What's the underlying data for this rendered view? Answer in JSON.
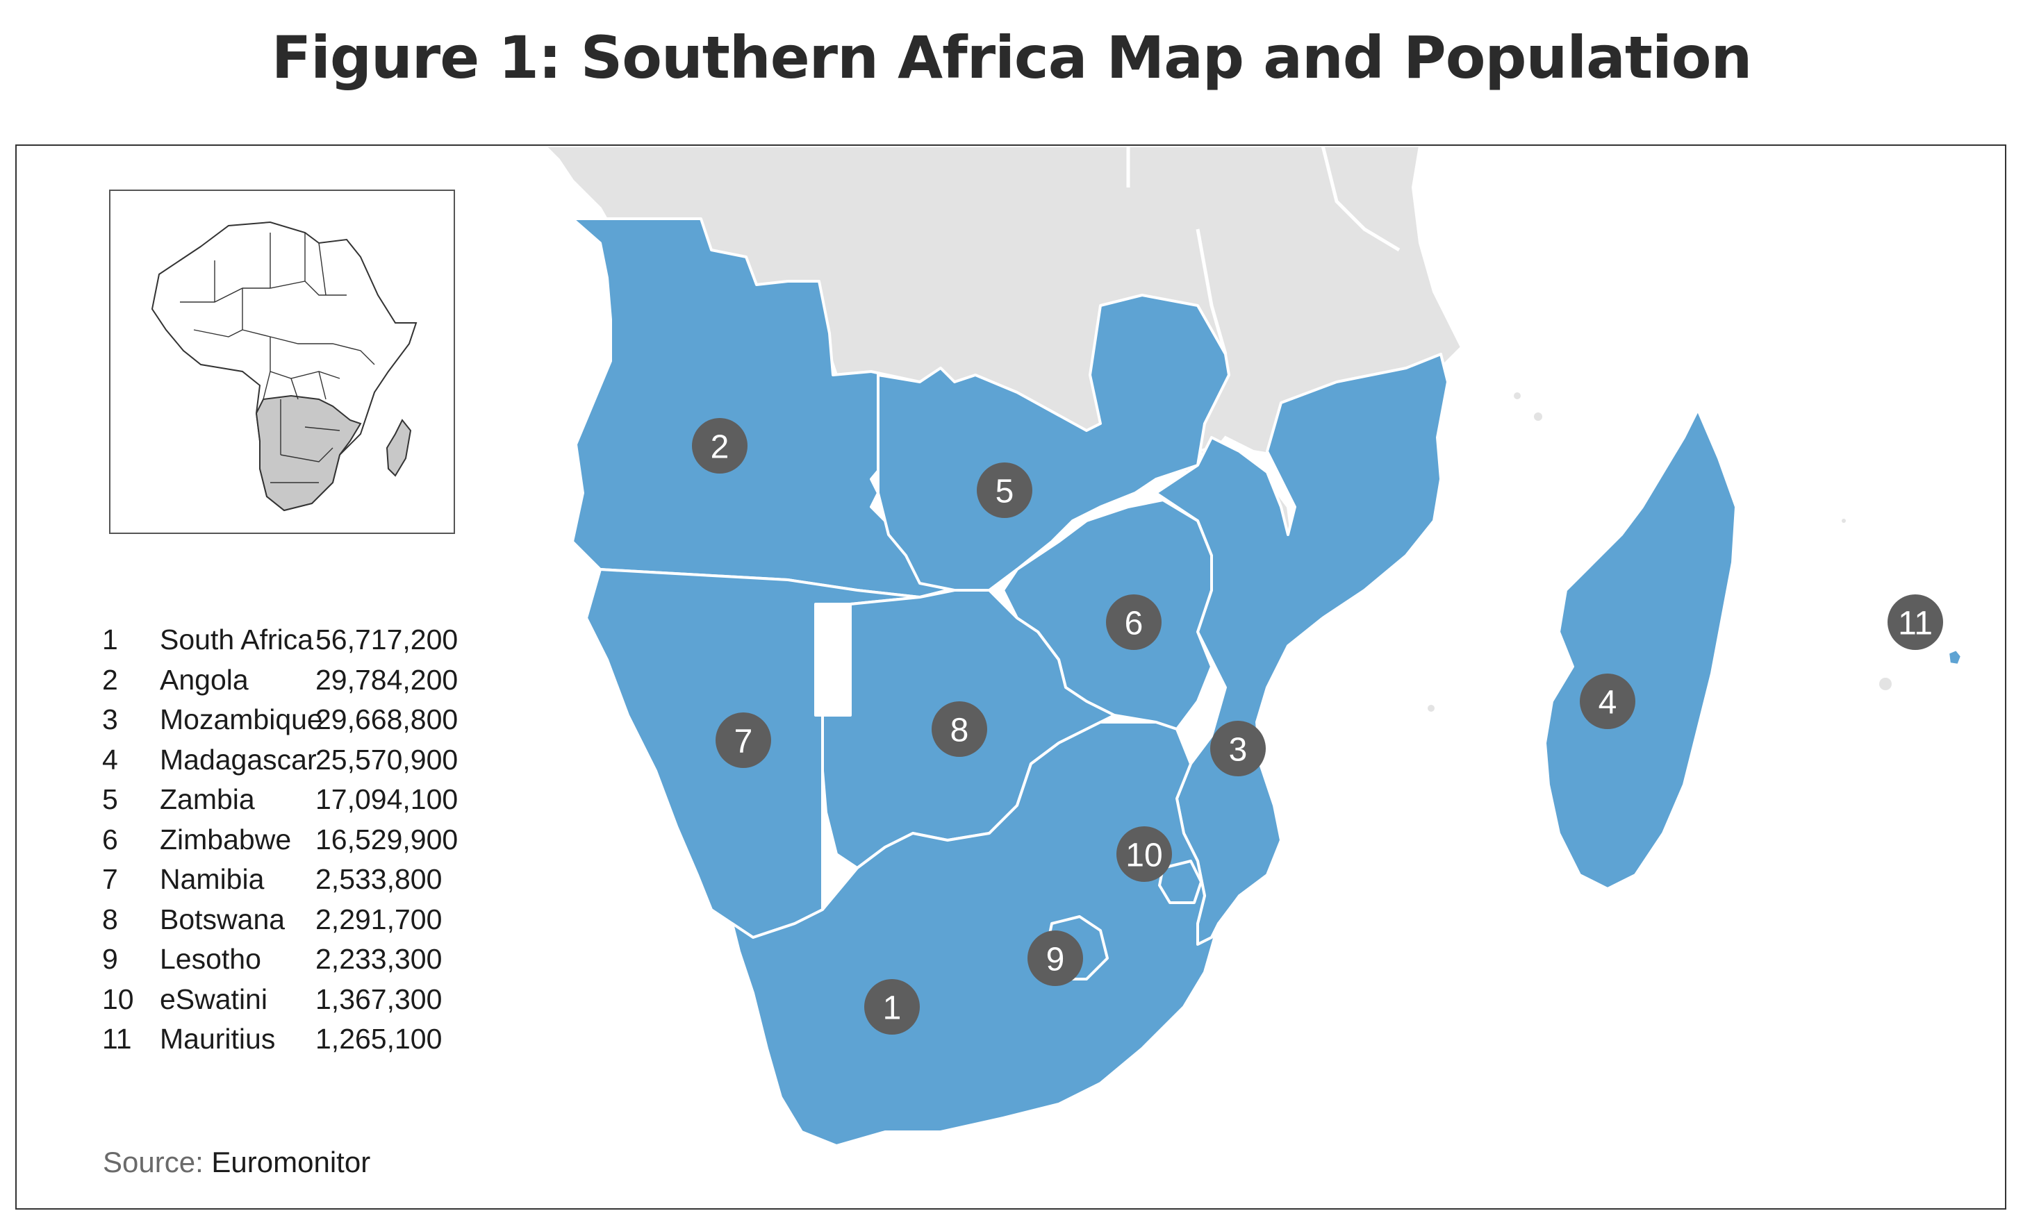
{
  "title": "Figure 1: Southern Africa Map and Population",
  "colors": {
    "highlight_region": "#5ea3d3",
    "other_land": "#e3e3e3",
    "borders": "#ffffff",
    "marker": "#5e5e5e",
    "inset_highlight": "#c8c8c8"
  },
  "countries": [
    {
      "id": 1,
      "name": "South Africa",
      "population": "56,717,200"
    },
    {
      "id": 2,
      "name": "Angola",
      "population": "29,784,200"
    },
    {
      "id": 3,
      "name": "Mozambique",
      "population": "29,668,800"
    },
    {
      "id": 4,
      "name": "Madagascar",
      "population": "25,570,900"
    },
    {
      "id": 5,
      "name": "Zambia",
      "population": "17,094,100"
    },
    {
      "id": 6,
      "name": "Zimbabwe",
      "population": "16,529,900"
    },
    {
      "id": 7,
      "name": "Namibia",
      "population": "2,533,800"
    },
    {
      "id": 8,
      "name": "Botswana",
      "population": "2,291,700"
    },
    {
      "id": 9,
      "name": "Lesotho",
      "population": "2,233,300"
    },
    {
      "id": 10,
      "name": "eSwatini",
      "population": "1,367,300"
    },
    {
      "id": 11,
      "name": "Mauritius",
      "population": "1,265,100"
    }
  ],
  "source": {
    "label": "Source:",
    "value": "Euromonitor"
  }
}
